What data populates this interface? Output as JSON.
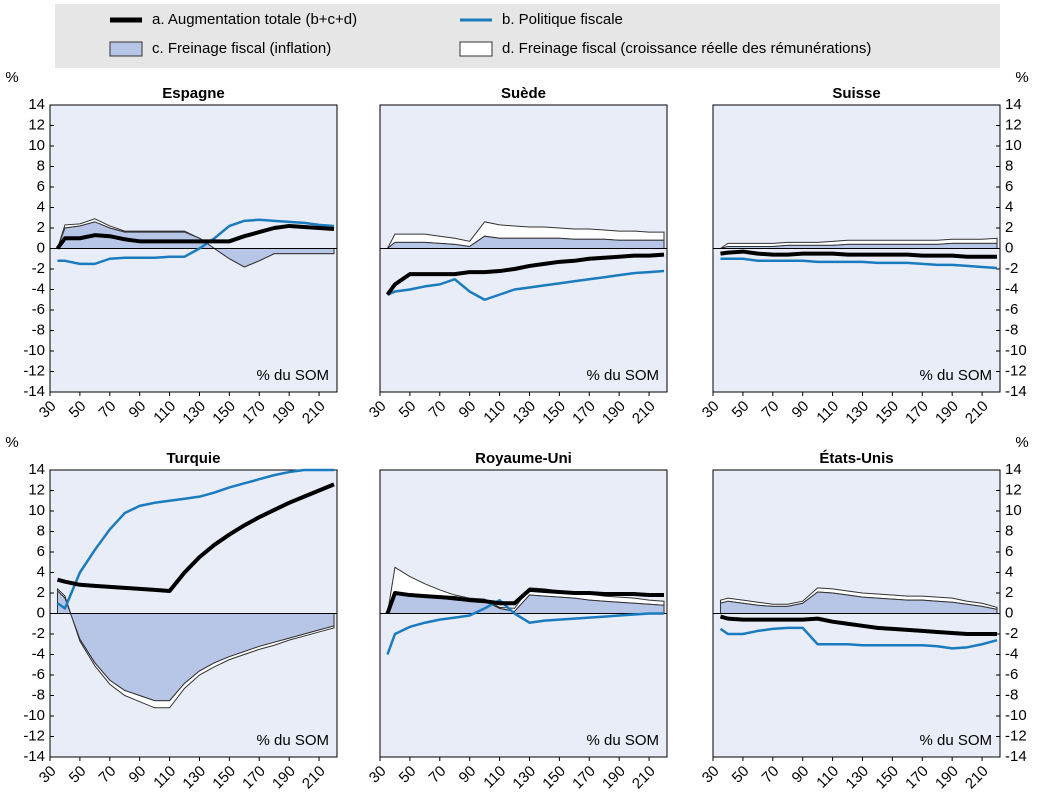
{
  "legend": [
    {
      "name": "a. Augmentation totale (b+c+d)",
      "color": "#000000"
    },
    {
      "name": "b. Politique fiscale",
      "color": "#1a7bbf"
    },
    {
      "name": "c. Freinage fiscal (inflation)",
      "color": "#b7c5e6"
    },
    {
      "name": "d. Freinage fiscal (croissance réelle des rémunérations)",
      "color": "#ffffff"
    }
  ],
  "chart_data": [
    {
      "type": "line",
      "title": "Espagne",
      "ylabel": "%",
      "annotation": "% du SOM",
      "xlim": [
        30,
        222
      ],
      "ylim": [
        -14,
        14
      ],
      "xticks": [
        30,
        50,
        70,
        90,
        110,
        130,
        150,
        170,
        190,
        210
      ],
      "yticks": [
        -14,
        -12,
        -10,
        -8,
        -6,
        -4,
        -2,
        0,
        2,
        4,
        6,
        8,
        10,
        12,
        14
      ],
      "x": [
        35,
        40,
        50,
        60,
        70,
        80,
        90,
        100,
        110,
        120,
        130,
        140,
        150,
        160,
        170,
        180,
        190,
        200,
        210,
        220
      ],
      "series": [
        {
          "values": [
            0,
            1,
            1,
            1.3,
            1.2,
            0.9,
            0.7,
            0.7,
            0.7,
            0.7,
            0.7,
            0.7,
            0.7,
            1.2,
            1.6,
            2,
            2.2,
            2.1,
            2,
            1.9
          ]
        },
        {
          "values": [
            -1.2,
            -1.2,
            -1.5,
            -1.5,
            -1,
            -0.9,
            -0.9,
            -0.9,
            -0.8,
            -0.8,
            0,
            1,
            2.2,
            2.7,
            2.8,
            2.7,
            2.6,
            2.5,
            2.3,
            2.2
          ]
        },
        {
          "values": [
            0,
            2,
            2.2,
            2.6,
            2,
            1.6,
            1.6,
            1.6,
            1.6,
            1.6,
            1,
            0,
            -1,
            -1.8,
            -1.2,
            -0.5,
            -0.5,
            -0.5,
            -0.5,
            -0.5
          ]
        },
        {
          "values": [
            0,
            0.3,
            0.2,
            0.3,
            0.2,
            0.1,
            0.1,
            0.1,
            0.1,
            0.1,
            0,
            0,
            0,
            0,
            0,
            0,
            0,
            0,
            0,
            0
          ]
        }
      ]
    },
    {
      "type": "line",
      "title": "Suède",
      "annotation": "% du SOM",
      "xlim": [
        30,
        222
      ],
      "ylim": [
        -14,
        14
      ],
      "xticks": [
        30,
        50,
        70,
        90,
        110,
        130,
        150,
        170,
        190,
        210
      ],
      "x": [
        35,
        40,
        50,
        60,
        70,
        80,
        90,
        100,
        110,
        120,
        130,
        140,
        150,
        160,
        170,
        180,
        190,
        200,
        210,
        220
      ],
      "series": [
        {
          "values": [
            -4.5,
            -3.5,
            -2.5,
            -2.5,
            -2.5,
            -2.5,
            -2.3,
            -2.3,
            -2.2,
            -2,
            -1.7,
            -1.5,
            -1.3,
            -1.2,
            -1,
            -0.9,
            -0.8,
            -0.7,
            -0.7,
            -0.6
          ]
        },
        {
          "values": [
            -4.5,
            -4.2,
            -4,
            -3.7,
            -3.5,
            -3,
            -4.2,
            -5,
            -4.5,
            -4,
            -3.8,
            -3.6,
            -3.4,
            -3.2,
            -3,
            -2.8,
            -2.6,
            -2.4,
            -2.3,
            -2.2
          ]
        },
        {
          "values": [
            0,
            0.6,
            0.6,
            0.6,
            0.5,
            0.4,
            0.2,
            1.2,
            1,
            1,
            1,
            1,
            1,
            0.9,
            0.9,
            0.9,
            0.8,
            0.8,
            0.8,
            0.8
          ]
        },
        {
          "values": [
            0,
            0.8,
            0.8,
            0.8,
            0.7,
            0.6,
            0.5,
            1.4,
            1.3,
            1.2,
            1.1,
            1.1,
            1,
            1,
            1,
            0.9,
            0.9,
            0.9,
            0.8,
            0.8
          ]
        }
      ]
    },
    {
      "type": "line",
      "title": "Suisse",
      "ylabel": "%",
      "annotation": "% du SOM",
      "xlim": [
        30,
        222
      ],
      "ylim": [
        -14,
        14
      ],
      "xticks": [
        30,
        50,
        70,
        90,
        110,
        130,
        150,
        170,
        190,
        210
      ],
      "yticks": [
        -14,
        -12,
        -10,
        -8,
        -6,
        -4,
        -2,
        0,
        2,
        4,
        6,
        8,
        10,
        12,
        14
      ],
      "x": [
        35,
        40,
        50,
        60,
        70,
        80,
        90,
        100,
        110,
        120,
        130,
        140,
        150,
        160,
        170,
        180,
        190,
        200,
        210,
        220
      ],
      "series": [
        {
          "values": [
            -0.5,
            -0.4,
            -0.3,
            -0.5,
            -0.6,
            -0.6,
            -0.5,
            -0.5,
            -0.5,
            -0.6,
            -0.6,
            -0.6,
            -0.6,
            -0.6,
            -0.7,
            -0.7,
            -0.7,
            -0.8,
            -0.8,
            -0.8
          ]
        },
        {
          "values": [
            -1,
            -1,
            -1,
            -1.2,
            -1.2,
            -1.2,
            -1.2,
            -1.3,
            -1.3,
            -1.3,
            -1.3,
            -1.4,
            -1.4,
            -1.4,
            -1.5,
            -1.6,
            -1.6,
            -1.7,
            -1.8,
            -1.9
          ]
        },
        {
          "values": [
            0,
            0.2,
            0.2,
            0.2,
            0.2,
            0.3,
            0.3,
            0.3,
            0.3,
            0.4,
            0.4,
            0.4,
            0.4,
            0.4,
            0.4,
            0.4,
            0.5,
            0.5,
            0.5,
            0.5
          ]
        },
        {
          "values": [
            0,
            0.3,
            0.3,
            0.3,
            0.3,
            0.3,
            0.3,
            0.3,
            0.4,
            0.4,
            0.4,
            0.4,
            0.4,
            0.4,
            0.4,
            0.4,
            0.4,
            0.4,
            0.4,
            0.5
          ]
        }
      ]
    },
    {
      "type": "line",
      "title": "Turquie",
      "ylabel": "%",
      "annotation": "% du SOM",
      "xlim": [
        30,
        222
      ],
      "ylim": [
        -14,
        14
      ],
      "xticks": [
        30,
        50,
        70,
        90,
        110,
        130,
        150,
        170,
        190,
        210
      ],
      "yticks": [
        -14,
        -12,
        -10,
        -8,
        -6,
        -4,
        -2,
        0,
        2,
        4,
        6,
        8,
        10,
        12,
        14
      ],
      "x": [
        35,
        40,
        50,
        60,
        70,
        80,
        90,
        100,
        110,
        120,
        130,
        140,
        150,
        160,
        170,
        180,
        190,
        200,
        210,
        220
      ],
      "series": [
        {
          "values": [
            3.3,
            3.1,
            2.8,
            2.7,
            2.6,
            2.5,
            2.4,
            2.3,
            2.2,
            4,
            5.5,
            6.7,
            7.7,
            8.6,
            9.4,
            10.1,
            10.8,
            11.4,
            12,
            12.6
          ]
        },
        {
          "values": [
            1,
            0.5,
            4,
            6.2,
            8.2,
            9.8,
            10.5,
            10.8,
            11,
            11.2,
            11.4,
            11.8,
            12.3,
            12.7,
            13.1,
            13.5,
            13.8,
            14,
            14,
            14
          ]
        },
        {
          "values": [
            2.2,
            1.5,
            -2.5,
            -4.8,
            -6.5,
            -7.5,
            -8,
            -8.5,
            -8.5,
            -6.8,
            -5.6,
            -4.8,
            -4.2,
            -3.7,
            -3.2,
            -2.8,
            -2.4,
            -2,
            -1.6,
            -1.2
          ]
        },
        {
          "values": [
            0.2,
            0.2,
            -0.2,
            -0.3,
            -0.4,
            -0.5,
            -0.6,
            -0.7,
            -0.7,
            -0.5,
            -0.4,
            -0.4,
            -0.3,
            -0.3,
            -0.3,
            -0.3,
            -0.2,
            -0.2,
            -0.2,
            -0.2
          ]
        }
      ]
    },
    {
      "type": "line",
      "title": "Royaume-Uni",
      "annotation": "% du SOM",
      "xlim": [
        30,
        222
      ],
      "ylim": [
        -14,
        14
      ],
      "xticks": [
        30,
        50,
        70,
        90,
        110,
        130,
        150,
        170,
        190,
        210
      ],
      "x": [
        35,
        40,
        50,
        60,
        70,
        80,
        90,
        100,
        110,
        120,
        130,
        140,
        150,
        160,
        170,
        180,
        190,
        200,
        210,
        220
      ],
      "series": [
        {
          "values": [
            0,
            2,
            1.8,
            1.7,
            1.6,
            1.5,
            1.3,
            1.2,
            1,
            1,
            2.3,
            2.2,
            2.1,
            2,
            2,
            1.9,
            1.9,
            1.9,
            1.8,
            1.8
          ]
        },
        {
          "values": [
            -4,
            -2,
            -1.3,
            -0.9,
            -0.6,
            -0.4,
            -0.2,
            0.5,
            1.3,
            0,
            -0.9,
            -0.7,
            -0.6,
            -0.5,
            -0.4,
            -0.3,
            -0.2,
            -0.1,
            0,
            0
          ]
        },
        {
          "values": [
            0,
            2,
            1.9,
            1.7,
            1.5,
            1.3,
            1.2,
            1.2,
            0.5,
            0.2,
            1.8,
            1.7,
            1.6,
            1.5,
            1.3,
            1.2,
            1.1,
            1,
            0.9,
            0.8
          ]
        },
        {
          "values": [
            0,
            2.5,
            1.7,
            1.2,
            0.8,
            0.5,
            0.3,
            0.2,
            0.1,
            0.3,
            0.7,
            0.7,
            0.6,
            0.6,
            0.6,
            0.5,
            0.5,
            0.5,
            0.4,
            0.4
          ]
        }
      ]
    },
    {
      "type": "line",
      "title": "États-Unis",
      "ylabel": "%",
      "annotation": "% du SOM",
      "xlim": [
        30,
        222
      ],
      "ylim": [
        -14,
        14
      ],
      "xticks": [
        30,
        50,
        70,
        90,
        110,
        130,
        150,
        170,
        190,
        210
      ],
      "yticks": [
        -14,
        -12,
        -10,
        -8,
        -6,
        -4,
        -2,
        0,
        2,
        4,
        6,
        8,
        10,
        12,
        14
      ],
      "x": [
        35,
        40,
        50,
        60,
        70,
        80,
        90,
        100,
        110,
        120,
        130,
        140,
        150,
        160,
        170,
        180,
        190,
        200,
        210,
        220
      ],
      "series": [
        {
          "values": [
            -0.3,
            -0.5,
            -0.6,
            -0.6,
            -0.6,
            -0.6,
            -0.6,
            -0.5,
            -0.8,
            -1,
            -1.2,
            -1.4,
            -1.5,
            -1.6,
            -1.7,
            -1.8,
            -1.9,
            -2,
            -2,
            -2
          ]
        },
        {
          "values": [
            -1.5,
            -2,
            -2,
            -1.7,
            -1.5,
            -1.4,
            -1.4,
            -3,
            -3,
            -3,
            -3.1,
            -3.1,
            -3.1,
            -3.1,
            -3.1,
            -3.2,
            -3.4,
            -3.3,
            -3,
            -2.6
          ]
        },
        {
          "values": [
            1,
            1.2,
            1,
            0.8,
            0.7,
            0.7,
            1,
            2.1,
            2,
            1.8,
            1.6,
            1.5,
            1.4,
            1.3,
            1.3,
            1.2,
            1.1,
            0.9,
            0.7,
            0.4
          ]
        },
        {
          "values": [
            0.3,
            0.3,
            0.3,
            0.3,
            0.2,
            0.2,
            0.2,
            0.4,
            0.4,
            0.4,
            0.4,
            0.4,
            0.4,
            0.4,
            0.4,
            0.4,
            0.4,
            0.3,
            0.3,
            0.2
          ]
        }
      ]
    }
  ]
}
